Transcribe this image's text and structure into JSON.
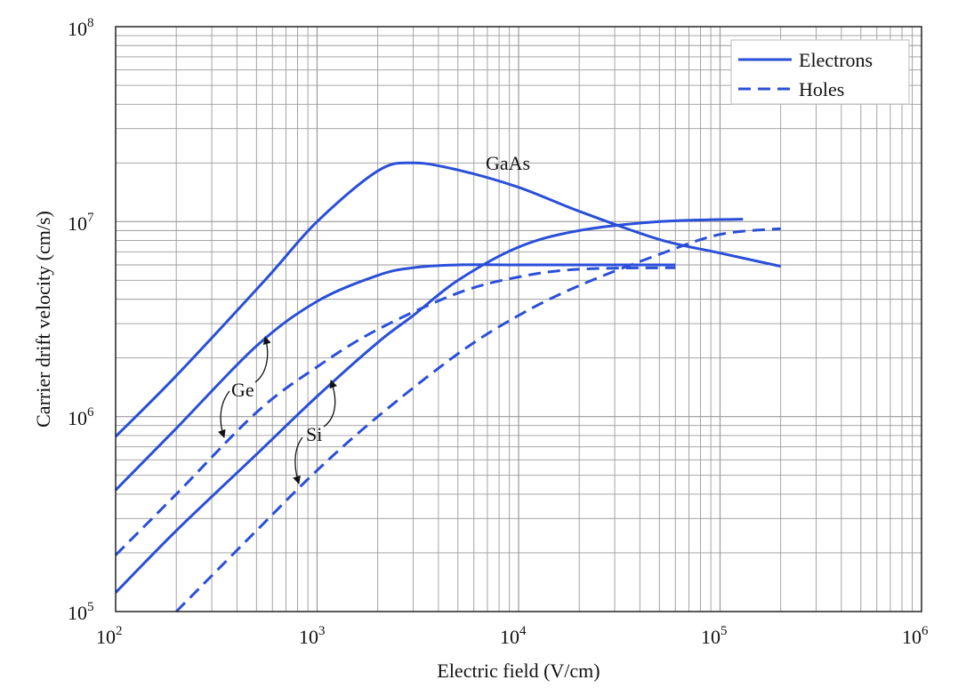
{
  "chart_data": {
    "type": "line",
    "title": "",
    "xlabel": "Electric field (V/cm)",
    "ylabel": "Carrier drift velocity (cm/s)",
    "xscale": "log",
    "yscale": "log",
    "xlim": [
      100,
      1000000
    ],
    "ylim": [
      100000,
      100000000
    ],
    "grid": true,
    "x_ticks": [
      {
        "base": "10",
        "exp": "2"
      },
      {
        "base": "10",
        "exp": "3"
      },
      {
        "base": "10",
        "exp": "4"
      },
      {
        "base": "10",
        "exp": "5"
      },
      {
        "base": "10",
        "exp": "6"
      }
    ],
    "y_ticks": [
      {
        "base": "10",
        "exp": "5"
      },
      {
        "base": "10",
        "exp": "6"
      },
      {
        "base": "10",
        "exp": "7"
      },
      {
        "base": "10",
        "exp": "8"
      }
    ],
    "legend": {
      "position": "top-right",
      "entries": [
        {
          "label": "Electrons",
          "style": "solid"
        },
        {
          "label": "Holes",
          "style": "dashed"
        }
      ]
    },
    "color": "#2a4fd8",
    "series": [
      {
        "material": "GaAs",
        "carrier": "electrons",
        "style": "solid",
        "x": [
          100,
          200,
          550,
          1000,
          2000,
          3000,
          5000,
          10000,
          20000,
          50000,
          100000,
          200000
        ],
        "y": [
          790000,
          1620000,
          5000000,
          10000000,
          18200000,
          20000000,
          18400000,
          15000000,
          11300000,
          8100000,
          6900000,
          5900000
        ]
      },
      {
        "material": "Ge",
        "carrier": "electrons",
        "style": "solid",
        "x": [
          100,
          200,
          500,
          1000,
          2000,
          3000,
          5000,
          10000,
          20000,
          60000
        ],
        "y": [
          420000,
          870000,
          2300000,
          3900000,
          5300000,
          5800000,
          6000000,
          6000000,
          6000000,
          6000000
        ]
      },
      {
        "material": "Ge",
        "carrier": "holes",
        "style": "dashed",
        "x": [
          100,
          200,
          500,
          1000,
          2000,
          5000,
          10000,
          20000,
          60000
        ],
        "y": [
          195000,
          400000,
          1050000,
          1800000,
          2800000,
          4300000,
          5200000,
          5700000,
          5800000
        ]
      },
      {
        "material": "Si",
        "carrier": "electrons",
        "style": "solid",
        "x": [
          100,
          200,
          500,
          1000,
          2000,
          3000,
          5000,
          10000,
          20000,
          50000,
          130000
        ],
        "y": [
          125000,
          260000,
          640000,
          1270000,
          2400000,
          3300000,
          5000000,
          7400000,
          9000000,
          10000000,
          10300000
        ]
      },
      {
        "material": "Si",
        "carrier": "holes",
        "style": "dashed",
        "x": [
          200,
          500,
          1000,
          2000,
          5000,
          10000,
          20000,
          50000,
          100000,
          200000
        ],
        "y": [
          100000,
          260000,
          530000,
          1000000,
          2100000,
          3300000,
          4700000,
          6800000,
          8600000,
          9200000
        ]
      }
    ],
    "annotations": [
      "GaAs",
      "Ge",
      "Si"
    ]
  }
}
